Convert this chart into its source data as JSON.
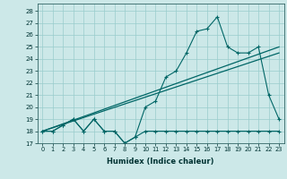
{
  "xlabel": "Humidex (Indice chaleur)",
  "bg_color": "#cce8e8",
  "grid_color": "#99cccc",
  "line_color": "#006666",
  "xlim": [
    -0.5,
    23.5
  ],
  "ylim": [
    17,
    28.6
  ],
  "yticks": [
    17,
    18,
    19,
    20,
    21,
    22,
    23,
    24,
    25,
    26,
    27,
    28
  ],
  "xticks": [
    0,
    1,
    2,
    3,
    4,
    5,
    6,
    7,
    8,
    9,
    10,
    11,
    12,
    13,
    14,
    15,
    16,
    17,
    18,
    19,
    20,
    21,
    22,
    23
  ],
  "line1_x": [
    0,
    1,
    2,
    3,
    4,
    5,
    6,
    7,
    8,
    9,
    10,
    11,
    12,
    13,
    14,
    15,
    16,
    17,
    18,
    19,
    20,
    21,
    22,
    23
  ],
  "line1_y": [
    18,
    18,
    18.5,
    19,
    18,
    19,
    18,
    18,
    17,
    17.5,
    18,
    18,
    18,
    18,
    18,
    18,
    18,
    18,
    18,
    18,
    18,
    18,
    18,
    18
  ],
  "line2_x": [
    0,
    1,
    2,
    3,
    4,
    5,
    6,
    7,
    8,
    9,
    10,
    11,
    12,
    13,
    14,
    15,
    16,
    17,
    18,
    19,
    20,
    21,
    22,
    23
  ],
  "line2_y": [
    18,
    18,
    18.5,
    19,
    18,
    19,
    18,
    18,
    17,
    17.5,
    20,
    20.5,
    22.5,
    23,
    24.5,
    26.3,
    26.5,
    27.5,
    25,
    24.5,
    24.5,
    25,
    21,
    19
  ],
  "line3_x": [
    0,
    23
  ],
  "line3_y": [
    18,
    24.5
  ],
  "line4_x": [
    0,
    23
  ],
  "line4_y": [
    18,
    25
  ]
}
